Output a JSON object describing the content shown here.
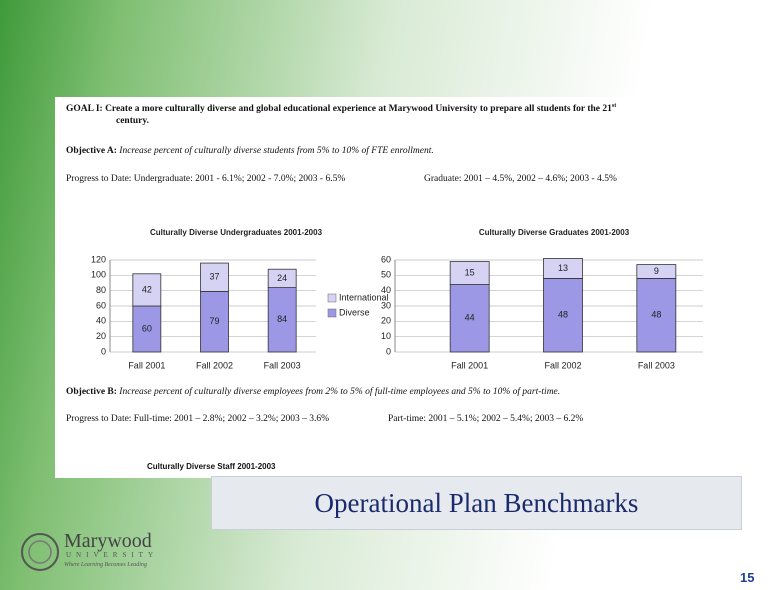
{
  "goal": {
    "label": "GOAL I:",
    "text_before": "Create a more culturally diverse and global educational experience at Marywood University to prepare all students for the 21",
    "superscript": "st",
    "text_after": "century."
  },
  "objective_a": {
    "label": "Objective A:",
    "text": "Increase percent of culturally diverse students from 5% to 10% of FTE enrollment.",
    "progress_1": "Progress to Date: Undergraduate: 2001 - 6.1%; 2002 - 7.0%; 2003 - 6.5%",
    "progress_2": "Graduate: 2001 – 4.5%, 2002 – 4.6%; 2003 - 4.5%"
  },
  "objective_b": {
    "label": "Objective B:",
    "text": "Increase percent of culturally diverse employees from 2% to 5% of full-time employees and 5% to 10% of part-time.",
    "progress_1": "Progress to Date: Full-time: 2001 – 2.8%; 2002 – 3.2%; 2003 – 3.6%",
    "progress_2": "Part-time: 2001 – 5.1%; 2002 – 5.4%; 2003 – 6.2%"
  },
  "chart_data": [
    {
      "type": "stacked_bar",
      "title": "Culturally Diverse Undergraduates 2001-2003",
      "categories": [
        "Fall 2001",
        "Fall 2002",
        "Fall 2003"
      ],
      "series": [
        {
          "name": "International",
          "color": "#d6d2f4",
          "values": [
            42,
            37,
            24
          ]
        },
        {
          "name": "Diverse",
          "color": "#9c98e6",
          "values": [
            60,
            79,
            84
          ]
        }
      ],
      "ylim": [
        0,
        120
      ],
      "yticks": [
        0,
        20,
        40,
        60,
        80,
        100,
        120
      ],
      "grid": true,
      "legend": "right"
    },
    {
      "type": "stacked_bar",
      "title": "Culturally Diverse Graduates 2001-2003",
      "categories": [
        "Fall 2001",
        "Fall 2002",
        "Fall 2003"
      ],
      "series": [
        {
          "color": "#d6d2f4",
          "values": [
            15,
            13,
            9
          ]
        },
        {
          "color": "#9c98e6",
          "values": [
            44,
            48,
            48
          ]
        }
      ],
      "ylim": [
        0,
        60
      ],
      "yticks": [
        0,
        10,
        20,
        30,
        40,
        50,
        60
      ],
      "grid": true
    }
  ],
  "staff_chart_title": "Culturally Diverse Staff 2001-2003",
  "banner": "Operational Plan Benchmarks",
  "logo": {
    "name": "Marywood",
    "subtitle": "UNIVERSITY",
    "tagline": "Where Learning Becomes Leading"
  },
  "page_number": "15"
}
